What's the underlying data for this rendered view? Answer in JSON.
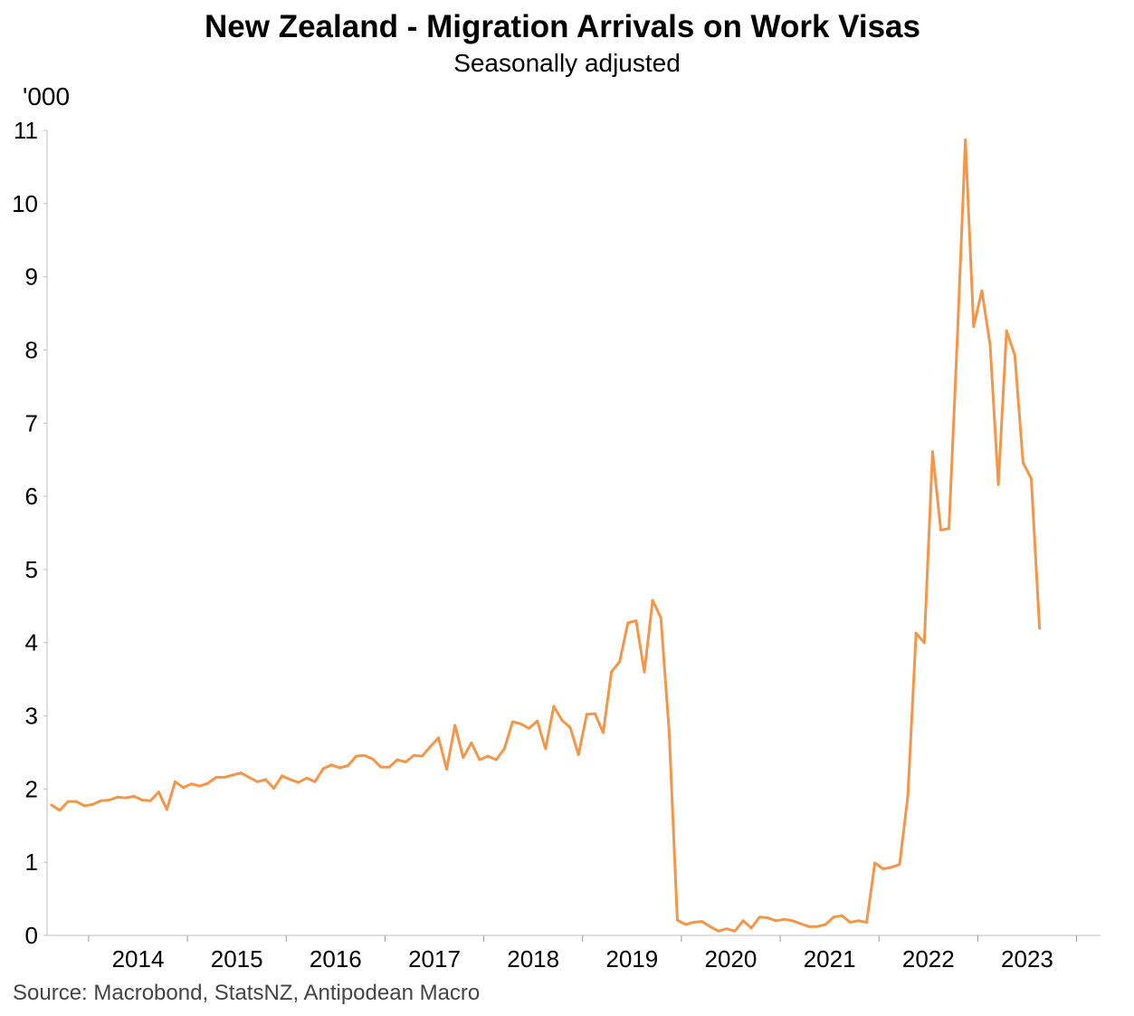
{
  "chart_data": {
    "type": "line",
    "title": "New Zealand - Migration Arrivals on Work Visas",
    "subtitle": "Seasonally adjusted",
    "ylabel": "'000",
    "xlabel": "",
    "source": "Source: Macrobond, StatsNZ, Antipodean Macro",
    "ylim": [
      0,
      11
    ],
    "yticks": [
      "0",
      "1",
      "2",
      "3",
      "4",
      "5",
      "6",
      "7",
      "8",
      "9",
      "10",
      "11"
    ],
    "x_start": "2013-08",
    "x_end": "2023-12",
    "year_labels": [
      "2014",
      "2015",
      "2016",
      "2017",
      "2018",
      "2019",
      "2020",
      "2021",
      "2022",
      "2023"
    ],
    "grid": false,
    "legend": "none",
    "series": [
      {
        "color": "#f4964a",
        "points": [
          [
            "2013-08",
            1.78
          ],
          [
            "2013-09",
            1.71
          ],
          [
            "2013-10",
            1.83
          ],
          [
            "2013-11",
            1.83
          ],
          [
            "2013-12",
            1.77
          ],
          [
            "2014-01",
            1.79
          ],
          [
            "2014-02",
            1.84
          ],
          [
            "2014-03",
            1.85
          ],
          [
            "2014-04",
            1.89
          ],
          [
            "2014-05",
            1.88
          ],
          [
            "2014-06",
            1.9
          ],
          [
            "2014-07",
            1.85
          ],
          [
            "2014-08",
            1.84
          ],
          [
            "2014-09",
            1.96
          ],
          [
            "2014-10",
            1.72
          ],
          [
            "2014-11",
            2.1
          ],
          [
            "2014-12",
            2.02
          ],
          [
            "2015-01",
            2.07
          ],
          [
            "2015-02",
            2.04
          ],
          [
            "2015-03",
            2.08
          ],
          [
            "2015-04",
            2.16
          ],
          [
            "2015-05",
            2.16
          ],
          [
            "2015-06",
            2.19
          ],
          [
            "2015-07",
            2.22
          ],
          [
            "2015-08",
            2.16
          ],
          [
            "2015-09",
            2.1
          ],
          [
            "2015-10",
            2.13
          ],
          [
            "2015-11",
            2.01
          ],
          [
            "2015-12",
            2.18
          ],
          [
            "2016-01",
            2.13
          ],
          [
            "2016-02",
            2.09
          ],
          [
            "2016-03",
            2.15
          ],
          [
            "2016-04",
            2.1
          ],
          [
            "2016-05",
            2.28
          ],
          [
            "2016-06",
            2.33
          ],
          [
            "2016-07",
            2.29
          ],
          [
            "2016-08",
            2.32
          ],
          [
            "2016-09",
            2.45
          ],
          [
            "2016-10",
            2.46
          ],
          [
            "2016-11",
            2.41
          ],
          [
            "2016-12",
            2.3
          ],
          [
            "2017-01",
            2.3
          ],
          [
            "2017-02",
            2.4
          ],
          [
            "2017-03",
            2.37
          ],
          [
            "2017-04",
            2.46
          ],
          [
            "2017-05",
            2.45
          ],
          [
            "2017-06",
            2.58
          ],
          [
            "2017-07",
            2.7
          ],
          [
            "2017-08",
            2.27
          ],
          [
            "2017-09",
            2.87
          ],
          [
            "2017-10",
            2.43
          ],
          [
            "2017-11",
            2.63
          ],
          [
            "2017-12",
            2.4
          ],
          [
            "2018-01",
            2.45
          ],
          [
            "2018-02",
            2.4
          ],
          [
            "2018-03",
            2.55
          ],
          [
            "2018-04",
            2.92
          ],
          [
            "2018-05",
            2.89
          ],
          [
            "2018-06",
            2.83
          ],
          [
            "2018-07",
            2.93
          ],
          [
            "2018-08",
            2.55
          ],
          [
            "2018-09",
            3.13
          ],
          [
            "2018-10",
            2.94
          ],
          [
            "2018-11",
            2.84
          ],
          [
            "2018-12",
            2.47
          ],
          [
            "2019-01",
            3.02
          ],
          [
            "2019-02",
            3.03
          ],
          [
            "2019-03",
            2.77
          ],
          [
            "2019-04",
            3.6
          ],
          [
            "2019-05",
            3.74
          ],
          [
            "2019-06",
            4.27
          ],
          [
            "2019-07",
            4.3
          ],
          [
            "2019-08",
            3.6
          ],
          [
            "2019-09",
            4.58
          ],
          [
            "2019-10",
            4.34
          ],
          [
            "2019-11",
            2.8
          ],
          [
            "2019-12",
            0.21
          ],
          [
            "2020-01",
            0.15
          ],
          [
            "2020-02",
            0.18
          ],
          [
            "2020-03",
            0.19
          ],
          [
            "2020-04",
            0.12
          ],
          [
            "2020-05",
            0.06
          ],
          [
            "2020-06",
            0.09
          ],
          [
            "2020-07",
            0.06
          ],
          [
            "2020-08",
            0.2
          ],
          [
            "2020-09",
            0.1
          ],
          [
            "2020-10",
            0.25
          ],
          [
            "2020-11",
            0.24
          ],
          [
            "2020-12",
            0.2
          ],
          [
            "2021-01",
            0.22
          ],
          [
            "2021-02",
            0.2
          ],
          [
            "2021-03",
            0.16
          ],
          [
            "2021-04",
            0.12
          ],
          [
            "2021-05",
            0.12
          ],
          [
            "2021-06",
            0.15
          ],
          [
            "2021-07",
            0.25
          ],
          [
            "2021-08",
            0.27
          ],
          [
            "2021-09",
            0.18
          ],
          [
            "2021-10",
            0.2
          ],
          [
            "2021-11",
            0.18
          ],
          [
            "2021-12",
            0.99
          ],
          [
            "2022-01",
            0.91
          ],
          [
            "2022-02",
            0.93
          ],
          [
            "2022-03",
            0.97
          ],
          [
            "2022-04",
            1.9
          ],
          [
            "2022-05",
            4.13
          ],
          [
            "2022-06",
            4.0
          ],
          [
            "2022-07",
            6.61
          ],
          [
            "2022-08",
            5.54
          ],
          [
            "2022-09",
            5.56
          ],
          [
            "2022-10",
            8.1
          ],
          [
            "2022-11",
            10.87
          ],
          [
            "2022-12",
            8.32
          ],
          [
            "2023-01",
            8.81
          ],
          [
            "2023-02",
            8.07
          ],
          [
            "2023-03",
            6.16
          ],
          [
            "2023-04",
            8.26
          ],
          [
            "2023-05",
            7.93
          ],
          [
            "2023-06",
            6.46
          ],
          [
            "2023-07",
            6.24
          ],
          [
            "2023-08",
            4.2
          ]
        ]
      }
    ]
  }
}
